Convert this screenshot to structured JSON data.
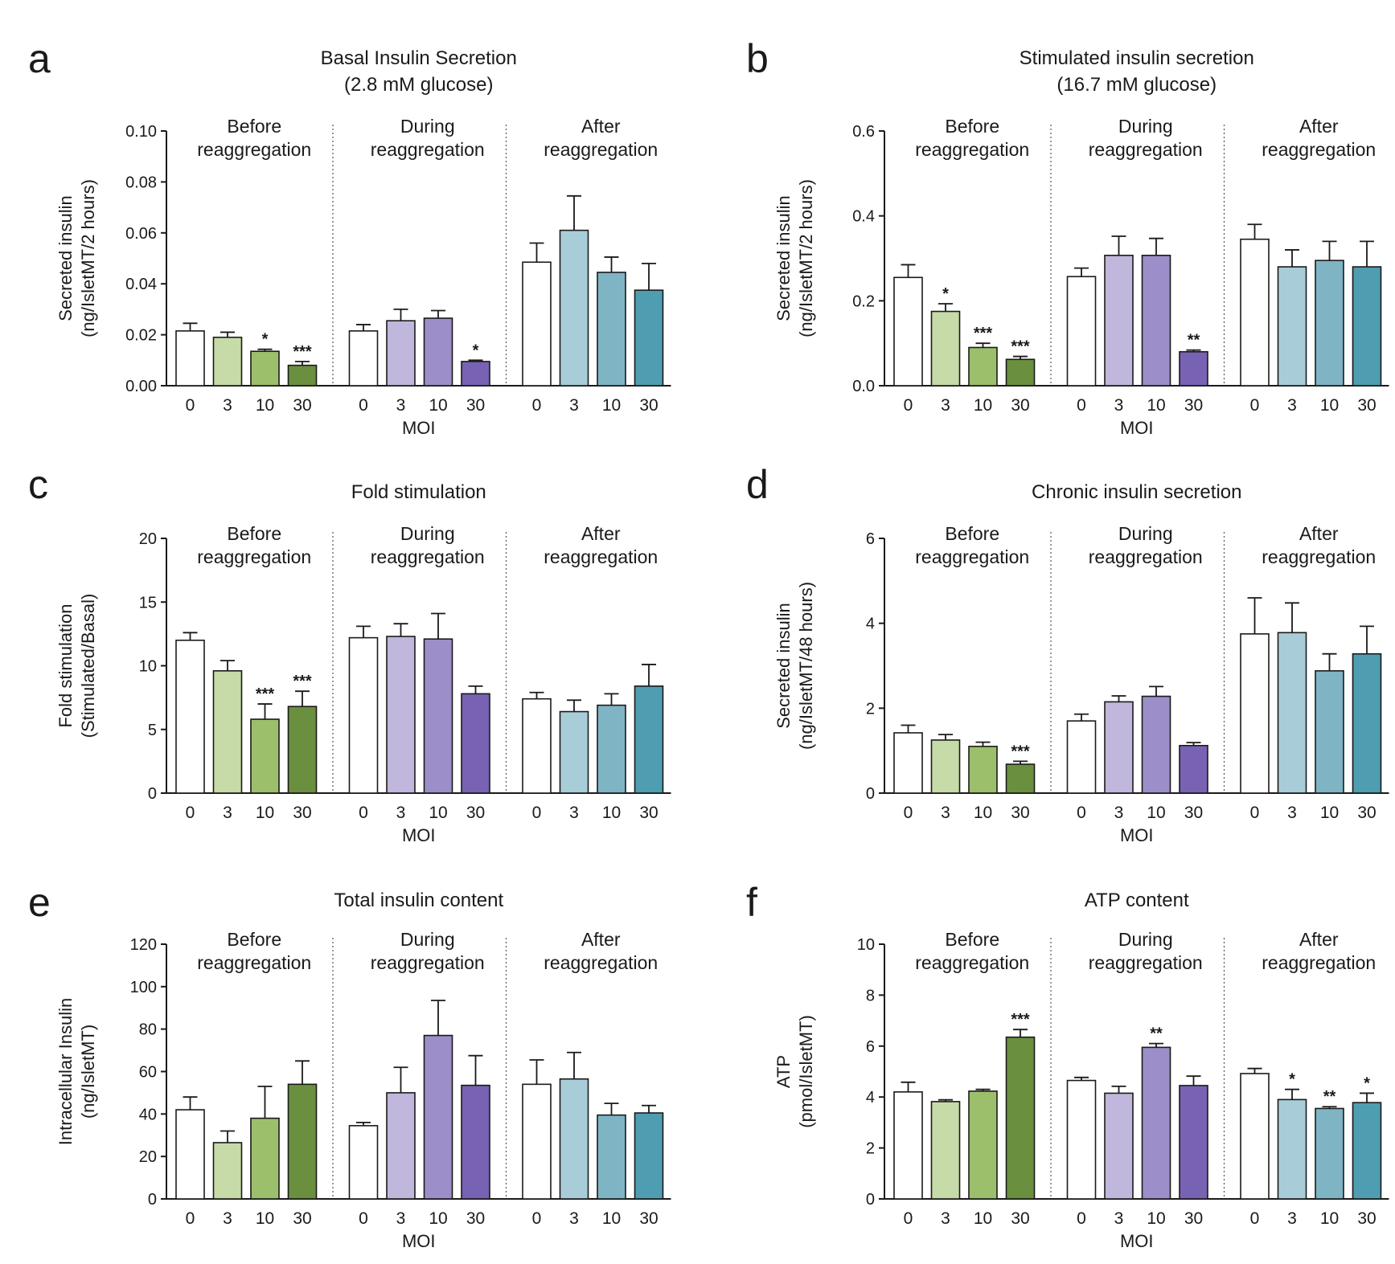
{
  "figure": {
    "colors": {
      "group0": "#ffffff",
      "before": [
        "#ffffff",
        "#c6dba8",
        "#9cbf6c",
        "#6a8f3e"
      ],
      "during": [
        "#ffffff",
        "#c1b6db",
        "#9c8ec9",
        "#7862b3"
      ],
      "after": [
        "#ffffff",
        "#a9cdd8",
        "#7fb4c5",
        "#4f9db0"
      ],
      "axis": "#1a1a1a"
    }
  },
  "chart_data": [
    {
      "panel": "a",
      "type": "bar",
      "title": [
        "Basal Insulin Secretion",
        "(2.8 mM glucose)"
      ],
      "ylabel": [
        "Secreted insulin",
        "(ng/IsletMT/2 hours)"
      ],
      "xlabel": "MOI",
      "ylim": [
        0,
        0.1
      ],
      "yticks": [
        "0.00",
        "0.02",
        "0.04",
        "0.06",
        "0.08",
        "0.10"
      ],
      "categories": [
        "0",
        "3",
        "10",
        "30"
      ],
      "groups": [
        {
          "label": [
            "Before",
            "reaggregation"
          ],
          "values": [
            0.0215,
            0.019,
            0.0135,
            0.008
          ],
          "errors": [
            0.003,
            0.002,
            0.0008,
            0.0015
          ],
          "sig": [
            "",
            "",
            "*",
            "***"
          ]
        },
        {
          "label": [
            "During",
            "reaggregation"
          ],
          "values": [
            0.0215,
            0.0255,
            0.0265,
            0.0095
          ],
          "errors": [
            0.0025,
            0.0045,
            0.003,
            0.0005
          ],
          "sig": [
            "",
            "",
            "",
            "*"
          ]
        },
        {
          "label": [
            "After",
            "reaggregation"
          ],
          "values": [
            0.0485,
            0.061,
            0.0445,
            0.0375
          ],
          "errors": [
            0.0075,
            0.0135,
            0.006,
            0.0105
          ],
          "sig": [
            "",
            "",
            "",
            ""
          ]
        }
      ]
    },
    {
      "panel": "b",
      "type": "bar",
      "title": [
        "Stimulated insulin secretion",
        "(16.7 mM glucose)"
      ],
      "ylabel": [
        "Secreted insulin",
        "(ng/IsletMT/2 hours)"
      ],
      "xlabel": "MOI",
      "ylim": [
        0,
        0.6
      ],
      "yticks": [
        "0.0",
        "0.2",
        "0.4",
        "0.6"
      ],
      "categories": [
        "0",
        "3",
        "10",
        "30"
      ],
      "groups": [
        {
          "label": [
            "Before",
            "reaggregation"
          ],
          "values": [
            0.255,
            0.175,
            0.09,
            0.062
          ],
          "errors": [
            0.03,
            0.018,
            0.01,
            0.007
          ],
          "sig": [
            "",
            "*",
            "***",
            "***"
          ]
        },
        {
          "label": [
            "During",
            "reaggregation"
          ],
          "values": [
            0.257,
            0.307,
            0.307,
            0.08
          ],
          "errors": [
            0.02,
            0.045,
            0.04,
            0.004
          ],
          "sig": [
            "",
            "",
            "",
            "**"
          ]
        },
        {
          "label": [
            "After",
            "reaggregation"
          ],
          "values": [
            0.345,
            0.28,
            0.295,
            0.28
          ],
          "errors": [
            0.035,
            0.04,
            0.045,
            0.06
          ],
          "sig": [
            "",
            "",
            "",
            ""
          ]
        }
      ]
    },
    {
      "panel": "c",
      "type": "bar",
      "title": [
        "Fold stimulation"
      ],
      "ylabel": [
        "Fold stimulation",
        "(Stimulated/Basal)"
      ],
      "xlabel": "",
      "ylim": [
        0,
        20
      ],
      "yticks": [
        "0",
        "5",
        "10",
        "15",
        "20"
      ],
      "categories": [
        "0",
        "3",
        "10",
        "30"
      ],
      "groups": [
        {
          "label": [
            "Before",
            "reaggregation"
          ],
          "values": [
            12.0,
            9.6,
            5.8,
            6.8
          ],
          "errors": [
            0.6,
            0.8,
            1.2,
            1.2
          ],
          "sig": [
            "",
            "",
            "***",
            "***"
          ]
        },
        {
          "label": [
            "During",
            "reaggregation"
          ],
          "values": [
            12.2,
            12.3,
            12.1,
            7.8
          ],
          "errors": [
            0.9,
            1.0,
            2.0,
            0.6
          ],
          "sig": [
            "",
            "",
            "",
            ""
          ]
        },
        {
          "label": [
            "After",
            "reaggregation"
          ],
          "values": [
            7.4,
            6.4,
            6.9,
            8.4
          ],
          "errors": [
            0.5,
            0.9,
            0.9,
            1.7
          ],
          "sig": [
            "",
            "",
            "",
            ""
          ]
        }
      ]
    },
    {
      "panel": "d",
      "type": "bar",
      "title": [
        "Chronic insulin secretion"
      ],
      "ylabel": [
        "Secreted insulin",
        "(ng/IsletMT/48 hours)"
      ],
      "xlabel": "MOI",
      "ylim": [
        0,
        6
      ],
      "yticks": [
        "0",
        "2",
        "4",
        "6"
      ],
      "categories": [
        "0",
        "3",
        "10",
        "30"
      ],
      "groups": [
        {
          "label": [
            "Before",
            "reaggregation"
          ],
          "values": [
            1.42,
            1.25,
            1.1,
            0.68
          ],
          "errors": [
            0.18,
            0.13,
            0.1,
            0.07
          ],
          "sig": [
            "",
            "",
            "",
            "***"
          ]
        },
        {
          "label": [
            "During",
            "reaggregation"
          ],
          "values": [
            1.7,
            2.15,
            2.28,
            1.12
          ],
          "errors": [
            0.16,
            0.14,
            0.23,
            0.07
          ],
          "sig": [
            "",
            "",
            "",
            ""
          ]
        },
        {
          "label": [
            "After",
            "reaggregation"
          ],
          "values": [
            3.75,
            3.78,
            2.88,
            3.28
          ],
          "errors": [
            0.85,
            0.7,
            0.4,
            0.65
          ],
          "sig": [
            "",
            "",
            "",
            ""
          ]
        }
      ]
    },
    {
      "panel": "e",
      "type": "bar",
      "title": [
        "Total insulin content"
      ],
      "ylabel": [
        "Intracellular Insulin",
        "(ng/IsletMT)"
      ],
      "xlabel": "MOI",
      "ylim": [
        0,
        120
      ],
      "yticks": [
        "0",
        "20",
        "40",
        "60",
        "80",
        "100",
        "120"
      ],
      "categories": [
        "0",
        "3",
        "10",
        "30"
      ],
      "groups": [
        {
          "label": [
            "Before",
            "reaggregation"
          ],
          "values": [
            42,
            26.5,
            38,
            54
          ],
          "errors": [
            6,
            5.5,
            15,
            11
          ],
          "sig": [
            "",
            "",
            "",
            ""
          ]
        },
        {
          "label": [
            "During",
            "reaggregation"
          ],
          "values": [
            34.5,
            50,
            77,
            53.5
          ],
          "errors": [
            1.5,
            12,
            16.5,
            14
          ],
          "sig": [
            "",
            "",
            "",
            ""
          ]
        },
        {
          "label": [
            "After",
            "reaggregation"
          ],
          "values": [
            54,
            56.5,
            39.5,
            40.5
          ],
          "errors": [
            11.5,
            12.5,
            5.5,
            3.5
          ],
          "sig": [
            "",
            "",
            "",
            ""
          ]
        }
      ]
    },
    {
      "panel": "f",
      "type": "bar",
      "title": [
        "ATP content"
      ],
      "ylabel": [
        "ATP",
        "(pmol/IsletMT)"
      ],
      "xlabel": "MOI",
      "ylim": [
        0,
        10
      ],
      "yticks": [
        "0",
        "2",
        "4",
        "6",
        "8",
        "10"
      ],
      "categories": [
        "0",
        "3",
        "10",
        "30"
      ],
      "groups": [
        {
          "label": [
            "Before",
            "reaggregation"
          ],
          "values": [
            4.2,
            3.82,
            4.23,
            6.35
          ],
          "errors": [
            0.38,
            0.07,
            0.07,
            0.3
          ],
          "sig": [
            "",
            "",
            "",
            "***"
          ]
        },
        {
          "label": [
            "During",
            "reaggregation"
          ],
          "values": [
            4.65,
            4.15,
            5.95,
            4.45
          ],
          "errors": [
            0.12,
            0.27,
            0.15,
            0.37
          ],
          "sig": [
            "",
            "",
            "**",
            ""
          ]
        },
        {
          "label": [
            "After",
            "reaggregation"
          ],
          "values": [
            4.92,
            3.9,
            3.55,
            3.78
          ],
          "errors": [
            0.2,
            0.4,
            0.07,
            0.37
          ],
          "sig": [
            "",
            "*",
            "**",
            "*"
          ]
        }
      ]
    }
  ]
}
